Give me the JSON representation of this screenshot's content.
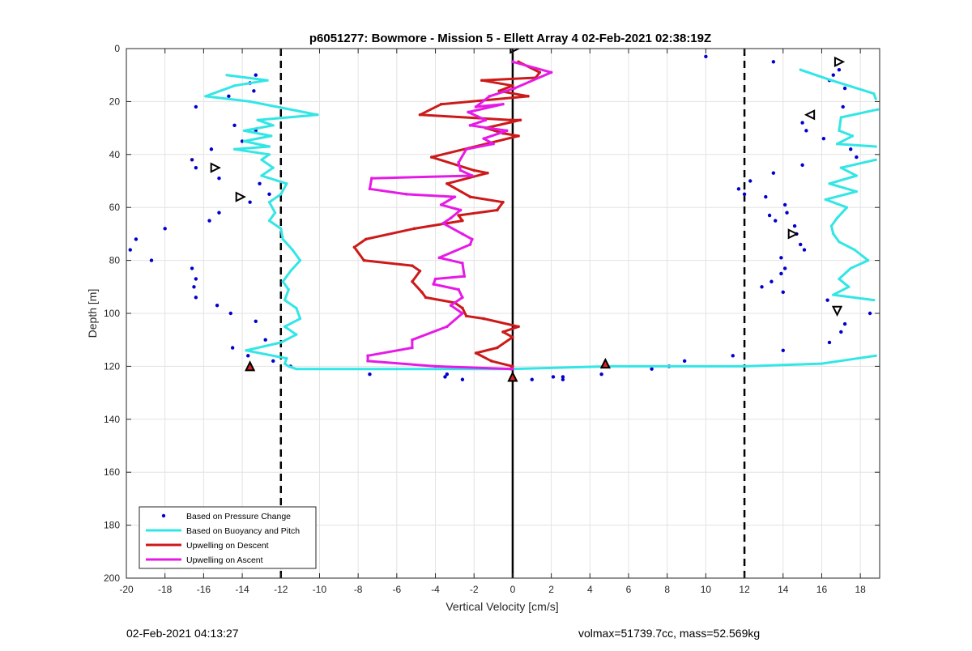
{
  "chart_data": {
    "type": "line",
    "title": "p6051277: Bowmore - Mission 5 - Ellett Array 4 02-Feb-2021 02:38:19Z",
    "xlabel": "Vertical Velocity [cm/s]",
    "ylabel": "Depth [m]",
    "xlim": [
      -20,
      19
    ],
    "ylim": [
      0,
      200
    ],
    "y_reversed": true,
    "grid": true,
    "x_ticks": [
      -20,
      -18,
      -16,
      -14,
      -12,
      -10,
      -8,
      -6,
      -4,
      -2,
      0,
      2,
      4,
      6,
      8,
      10,
      12,
      14,
      16,
      18
    ],
    "y_ticks": [
      0,
      20,
      40,
      60,
      80,
      100,
      120,
      140,
      160,
      180,
      200
    ],
    "legend_position": "bottom-left",
    "reference_lines": [
      {
        "x": -12,
        "style": "dashed",
        "color": "#000000"
      },
      {
        "x": 0,
        "style": "solid",
        "color": "#000000"
      },
      {
        "x": 12,
        "style": "dashed",
        "color": "#000000"
      }
    ],
    "series": [
      {
        "name": "Based on Pressure Change",
        "kind": "scatter",
        "color": "#0000cc",
        "points": [
          [
            -13.3,
            10
          ],
          [
            -13.6,
            13
          ],
          [
            -13.4,
            16
          ],
          [
            -14.7,
            18
          ],
          [
            -16.4,
            22
          ],
          [
            -14.4,
            29
          ],
          [
            -13.3,
            31
          ],
          [
            -14.0,
            35
          ],
          [
            -15.6,
            38
          ],
          [
            -16.6,
            42
          ],
          [
            -16.4,
            45
          ],
          [
            -15.2,
            49
          ],
          [
            -13.1,
            51
          ],
          [
            -12.6,
            55
          ],
          [
            -13.6,
            58
          ],
          [
            -15.2,
            62
          ],
          [
            -15.7,
            65
          ],
          [
            -18.0,
            68
          ],
          [
            -19.5,
            72
          ],
          [
            -19.8,
            76
          ],
          [
            -18.7,
            80
          ],
          [
            -16.6,
            83
          ],
          [
            -16.4,
            87
          ],
          [
            -16.5,
            90
          ],
          [
            -16.4,
            94
          ],
          [
            -15.3,
            97
          ],
          [
            -14.6,
            100
          ],
          [
            -13.3,
            103
          ],
          [
            -12.8,
            110
          ],
          [
            -14.5,
            113
          ],
          [
            -13.7,
            116
          ],
          [
            -12.4,
            118
          ],
          [
            -11.5,
            120
          ],
          [
            -7.4,
            123
          ],
          [
            -3.4,
            123
          ],
          [
            -3.5,
            124
          ],
          [
            -2.6,
            125
          ],
          [
            1.0,
            125
          ],
          [
            2.1,
            124
          ],
          [
            2.6,
            124
          ],
          [
            2.6,
            125
          ],
          [
            4.6,
            123
          ],
          [
            7.2,
            121
          ],
          [
            8.1,
            120
          ],
          [
            8.9,
            118
          ],
          [
            11.4,
            116
          ],
          [
            10.0,
            3
          ],
          [
            13.5,
            5
          ],
          [
            16.9,
            8
          ],
          [
            16.6,
            10
          ],
          [
            16.4,
            12
          ],
          [
            17.2,
            15
          ],
          [
            17.1,
            22
          ],
          [
            15.0,
            28
          ],
          [
            15.2,
            31
          ],
          [
            16.1,
            34
          ],
          [
            17.5,
            38
          ],
          [
            17.8,
            41
          ],
          [
            15.0,
            44
          ],
          [
            13.5,
            47
          ],
          [
            12.3,
            50
          ],
          [
            11.7,
            53
          ],
          [
            12.0,
            55
          ],
          [
            13.1,
            56
          ],
          [
            14.1,
            59
          ],
          [
            14.2,
            62
          ],
          [
            13.3,
            63
          ],
          [
            13.6,
            65
          ],
          [
            14.6,
            67
          ],
          [
            14.7,
            70
          ],
          [
            14.9,
            74
          ],
          [
            15.1,
            76
          ],
          [
            13.9,
            79
          ],
          [
            14.1,
            83
          ],
          [
            13.9,
            85
          ],
          [
            13.4,
            88
          ],
          [
            12.9,
            90
          ],
          [
            14.0,
            92
          ],
          [
            16.3,
            95
          ],
          [
            17.2,
            104
          ],
          [
            17.0,
            107
          ],
          [
            16.4,
            111
          ],
          [
            18.5,
            100
          ],
          [
            14.0,
            114
          ]
        ]
      },
      {
        "name": "Based on Buoyancy and Pitch",
        "kind": "line",
        "color": "#33e6e6",
        "segments": [
          [
            [
              -14.8,
              10
            ],
            [
              -12.7,
              12
            ],
            [
              -14.4,
              14
            ],
            [
              -15.9,
              18
            ],
            [
              -13.6,
              20
            ],
            [
              -10.1,
              25
            ],
            [
              -13.2,
              27
            ],
            [
              -12.4,
              29
            ],
            [
              -13.9,
              31
            ],
            [
              -12.5,
              33
            ],
            [
              -13.9,
              35
            ],
            [
              -12.6,
              37
            ],
            [
              -14.4,
              38
            ],
            [
              -12.6,
              40
            ],
            [
              -13.0,
              42
            ],
            [
              -12.4,
              45
            ],
            [
              -13.0,
              48
            ],
            [
              -11.7,
              51
            ],
            [
              -12.0,
              55
            ],
            [
              -12.6,
              58
            ],
            [
              -12.3,
              62
            ],
            [
              -12.6,
              65
            ],
            [
              -12.0,
              68
            ],
            [
              -11.9,
              72
            ],
            [
              -11.4,
              76
            ],
            [
              -11.0,
              80
            ],
            [
              -11.5,
              84
            ],
            [
              -11.9,
              88
            ],
            [
              -11.6,
              91
            ],
            [
              -11.8,
              95
            ],
            [
              -11.2,
              98
            ],
            [
              -11.0,
              102
            ],
            [
              -11.8,
              105
            ],
            [
              -11.2,
              108
            ],
            [
              -12.0,
              111
            ],
            [
              -13.8,
              114
            ],
            [
              -11.7,
              117
            ],
            [
              -11.8,
              119
            ],
            [
              -11.6,
              120
            ],
            [
              -11.2,
              121
            ],
            [
              -6.0,
              121
            ],
            [
              0.0,
              121
            ],
            [
              5.0,
              120
            ],
            [
              12.0,
              120
            ],
            [
              16.0,
              119
            ],
            [
              18.8,
              116
            ]
          ],
          [
            [
              14.9,
              8
            ],
            [
              16.5,
              12
            ],
            [
              18.7,
              17
            ],
            [
              18.8,
              19
            ]
          ],
          [
            [
              18.9,
              23
            ],
            [
              17.0,
              26
            ],
            [
              16.9,
              31
            ],
            [
              17.6,
              33
            ],
            [
              16.8,
              36
            ],
            [
              18.8,
              37
            ]
          ],
          [
            [
              18.8,
              42
            ],
            [
              17.0,
              45
            ],
            [
              17.8,
              48
            ],
            [
              16.4,
              51
            ],
            [
              17.8,
              54
            ],
            [
              16.2,
              57
            ],
            [
              17.3,
              60
            ],
            [
              16.8,
              64
            ],
            [
              16.5,
              67
            ],
            [
              16.6,
              70
            ],
            [
              16.9,
              73
            ],
            [
              17.7,
              76
            ],
            [
              18.4,
              80
            ],
            [
              17.5,
              83
            ],
            [
              16.9,
              87
            ],
            [
              17.4,
              90
            ],
            [
              16.6,
              93
            ],
            [
              18.7,
              95
            ]
          ]
        ]
      },
      {
        "name": "Upwelling on Descent",
        "kind": "line",
        "color": "#cc1a1a",
        "points": [
          [
            0.3,
            5
          ],
          [
            1.4,
            9
          ],
          [
            1.2,
            11
          ],
          [
            -1.6,
            12
          ],
          [
            0.0,
            14
          ],
          [
            -0.7,
            16
          ],
          [
            0.8,
            18
          ],
          [
            -3.7,
            21
          ],
          [
            -4.8,
            25
          ],
          [
            -0.1,
            27
          ],
          [
            0.4,
            27
          ],
          [
            -1.4,
            30
          ],
          [
            -0.5,
            32
          ],
          [
            0.3,
            33
          ],
          [
            -4.2,
            41
          ],
          [
            -2.0,
            46
          ],
          [
            -1.3,
            47
          ],
          [
            -3.4,
            51
          ],
          [
            -2.2,
            56
          ],
          [
            -0.5,
            58
          ],
          [
            -0.8,
            61
          ],
          [
            -2.8,
            63
          ],
          [
            -2.6,
            65
          ],
          [
            -5.1,
            68
          ],
          [
            -7.6,
            72
          ],
          [
            -8.2,
            75
          ],
          [
            -7.7,
            80
          ],
          [
            -5.2,
            82
          ],
          [
            -4.8,
            84
          ],
          [
            -5.2,
            88
          ],
          [
            -4.7,
            92
          ],
          [
            -4.5,
            94
          ],
          [
            -3.0,
            96
          ],
          [
            -2.6,
            98
          ],
          [
            -2.4,
            101
          ],
          [
            -1.5,
            102
          ],
          [
            0.3,
            105
          ],
          [
            -0.5,
            107
          ],
          [
            0.0,
            109
          ],
          [
            -0.8,
            113
          ],
          [
            -1.9,
            115
          ],
          [
            -1.1,
            118
          ],
          [
            0.0,
            120
          ],
          [
            -0.1,
            121
          ]
        ]
      },
      {
        "name": "Upwelling on Ascent",
        "kind": "line",
        "color": "#e61ae6",
        "points": [
          [
            0.0,
            5
          ],
          [
            2.0,
            9
          ],
          [
            0.1,
            15
          ],
          [
            -1.2,
            18
          ],
          [
            -1.9,
            22
          ],
          [
            -0.5,
            21
          ],
          [
            -2.3,
            24
          ],
          [
            -1.4,
            27
          ],
          [
            -2.2,
            29
          ],
          [
            -0.3,
            31
          ],
          [
            -1.5,
            34
          ],
          [
            -1.0,
            36
          ],
          [
            -2.4,
            38
          ],
          [
            -2.8,
            43
          ],
          [
            -2.7,
            46
          ],
          [
            -2.1,
            48
          ],
          [
            -7.3,
            49
          ],
          [
            -7.4,
            53
          ],
          [
            -5.5,
            55
          ],
          [
            -3.0,
            56
          ],
          [
            -3.7,
            59
          ],
          [
            -2.7,
            61
          ],
          [
            -3.2,
            64
          ],
          [
            -3.6,
            66
          ],
          [
            -2.6,
            70
          ],
          [
            -2.1,
            72
          ],
          [
            -2.2,
            74
          ],
          [
            -3.8,
            79
          ],
          [
            -2.6,
            81
          ],
          [
            -2.5,
            86
          ],
          [
            -4.0,
            87
          ],
          [
            -4.1,
            89
          ],
          [
            -2.8,
            91
          ],
          [
            -2.6,
            94
          ],
          [
            -3.2,
            97
          ],
          [
            -2.6,
            100
          ],
          [
            -3.4,
            105
          ],
          [
            -5.2,
            110
          ],
          [
            -5.2,
            113
          ],
          [
            -7.5,
            116
          ],
          [
            -7.5,
            118
          ],
          [
            -4.0,
            120
          ],
          [
            0.0,
            121
          ]
        ]
      },
      {
        "name": "markers",
        "kind": "markers",
        "items": [
          {
            "shape": "triangle-right",
            "x": 0.1,
            "y": 0
          },
          {
            "shape": "triangle-right",
            "x": 16.9,
            "y": 5
          },
          {
            "shape": "triangle-left",
            "x": 15.4,
            "y": 25
          },
          {
            "shape": "triangle-right",
            "x": -15.4,
            "y": 45
          },
          {
            "shape": "triangle-right",
            "x": -14.1,
            "y": 56
          },
          {
            "shape": "triangle-right",
            "x": 14.5,
            "y": 70
          },
          {
            "shape": "triangle-down",
            "x": 16.8,
            "y": 99
          },
          {
            "shape": "triangle-filled",
            "x": -13.6,
            "y": 120
          },
          {
            "shape": "triangle-filled",
            "x": 4.8,
            "y": 119
          },
          {
            "shape": "triangle-filled",
            "x": 0.0,
            "y": 124
          }
        ]
      }
    ]
  },
  "footer": {
    "timestamp": "02-Feb-2021 04:13:27",
    "stats": "volmax=51739.7cc, mass=52.569kg"
  }
}
